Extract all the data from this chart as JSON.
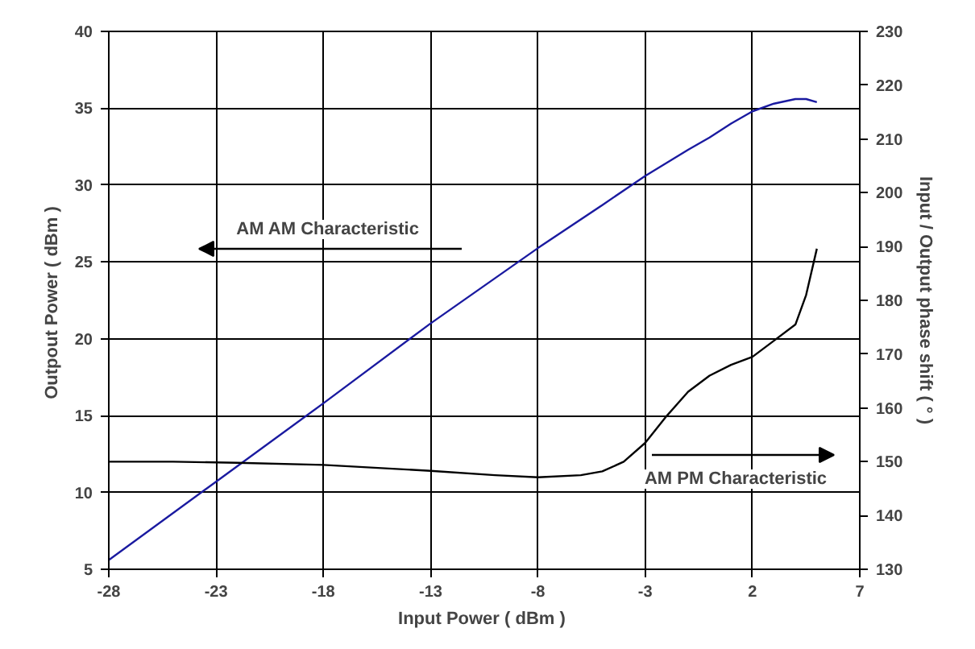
{
  "chart_data": {
    "type": "line",
    "xlabel": "Input Power  ( dBm )",
    "ylabel": "Outpout Power  ( dBm )",
    "y2label": "Input / Output phase shift ( ° )",
    "xlim": [
      -28,
      7
    ],
    "xticks": [
      -28,
      -23,
      -18,
      -13,
      -8,
      -3,
      2,
      7
    ],
    "ylim": [
      5,
      40
    ],
    "yticks": [
      5,
      10,
      15,
      20,
      25,
      30,
      35,
      40
    ],
    "y2lim": [
      130,
      230
    ],
    "y2ticks": [
      130,
      140,
      150,
      160,
      170,
      180,
      190,
      200,
      210,
      220,
      230
    ],
    "grid": true,
    "line_style": "solid",
    "marker": "none",
    "series": [
      {
        "color": "#1a1aa0",
        "x": [
          -28,
          -23,
          -18,
          -13,
          -8,
          -5,
          -3,
          -1,
          0,
          1,
          2,
          3,
          4,
          4.5,
          5
        ],
        "values": [
          5.6,
          10.7,
          15.8,
          21.0,
          25.9,
          28.7,
          30.6,
          32.3,
          33.1,
          34.0,
          34.8,
          35.3,
          35.6,
          35.6,
          35.4
        ]
      },
      {
        "color": "#000000",
        "axis": "y2",
        "x": [
          -28,
          -25,
          -22,
          -18,
          -13,
          -10,
          -8,
          -6,
          -5,
          -4,
          -3,
          -2,
          -1,
          0,
          1,
          2,
          3,
          4,
          4.5,
          5
        ],
        "values": [
          150,
          150,
          149.8,
          149.4,
          148.3,
          147.5,
          147.1,
          147.5,
          148.2,
          150,
          153.5,
          158.5,
          163,
          166,
          168,
          169.5,
          172.5,
          175.5,
          181,
          189.6
        ]
      }
    ],
    "annotations": [
      "AM AM Characteristic",
      "AM PM Characteristic"
    ]
  }
}
